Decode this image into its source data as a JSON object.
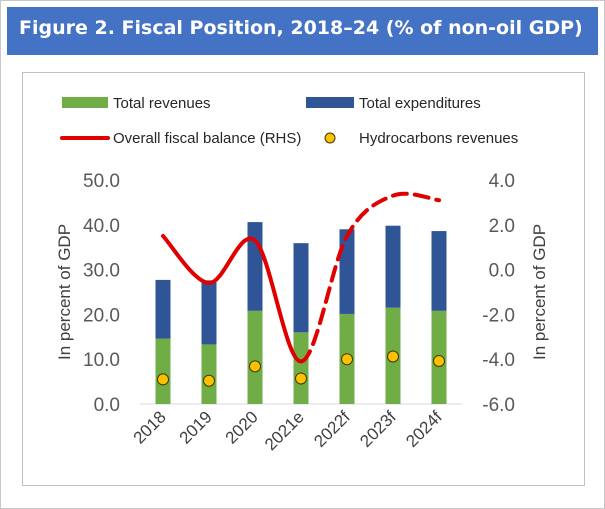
{
  "title": "Figure 2.  Fiscal Position, 2018–24 (% of non-oil GDP)",
  "colors": {
    "header": "#4472c4",
    "revenues": "#70ad47",
    "expenditures": "#2f5597",
    "balance": "#e00000",
    "hydrocarbons": "#ffc000"
  },
  "chart_data": {
    "type": "bar",
    "categories": [
      "2018",
      "2019",
      "2020",
      "2021e",
      "2022f",
      "2023f",
      "2024f"
    ],
    "series": [
      {
        "name": "Total revenues",
        "kind": "stacked-bar",
        "axis": "left",
        "values": [
          14.6,
          13.3,
          20.8,
          16.0,
          20.1,
          21.5,
          20.8
        ]
      },
      {
        "name": "Total expenditures",
        "kind": "stacked-bar",
        "axis": "left",
        "values": [
          27.7,
          27.6,
          40.6,
          35.9,
          39.0,
          39.8,
          38.6
        ]
      },
      {
        "name": "Overall fiscal balance (RHS)",
        "kind": "line",
        "axis": "right",
        "values": [
          1.5,
          -0.6,
          1.3,
          -4.1,
          1.5,
          3.3,
          3.1
        ],
        "dashed_from_index": 3
      },
      {
        "name": "Hydrocarbons revenues",
        "kind": "marker",
        "axis": "left",
        "values": [
          5.5,
          5.2,
          8.4,
          5.7,
          10.0,
          10.6,
          9.6
        ]
      }
    ],
    "note": "Total expenditures value is the total bar height (stacked top).",
    "ylabel": "In percent of GDP",
    "y2label": "In percent of GDP",
    "ylim": [
      0,
      50
    ],
    "y2lim": [
      -6,
      4
    ],
    "yticks": [
      "0.0",
      "10.0",
      "20.0",
      "30.0",
      "40.0",
      "50.0"
    ],
    "y2ticks": [
      "-6.0",
      "-4.0",
      "-2.0",
      "0.0",
      "2.0",
      "4.0"
    ],
    "legend": {
      "revenues": "Total revenues",
      "expenditures": "Total expenditures",
      "balance": "Overall fiscal balance (RHS)",
      "hydrocarbons": "Hydrocarbons revenues"
    }
  }
}
